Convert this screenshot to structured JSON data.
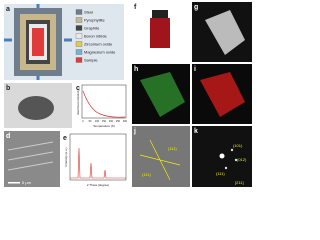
{
  "panels": [
    {
      "label": "a",
      "legend": [
        "Steel",
        "Pyrophyllite",
        "Graphite",
        "Boron nitride",
        "Zirconium oxide",
        "Magnesium oxide",
        "Sample"
      ]
    },
    {
      "label": "b"
    },
    {
      "label": "c",
      "y_label": "Electrical resistivity",
      "x_label": "Temperature (K)",
      "xticks": [
        "0",
        "50",
        "100",
        "150",
        "200",
        "250",
        "300"
      ]
    },
    {
      "label": "d",
      "scale": "5 μm"
    },
    {
      "label": "e",
      "y_label": "Intensity (a.u.)",
      "x_label": "2 Theta (degree)"
    },
    {
      "label": "f"
    },
    {
      "label": "g"
    },
    {
      "label": "h"
    },
    {
      "label": "i"
    },
    {
      "label": "j",
      "planes": [
        "(111)",
        "(111)"
      ]
    },
    {
      "label": "k",
      "spots": [
        "(101)",
        "(012)",
        "(111)"
      ],
      "zone": "[211]"
    }
  ]
}
